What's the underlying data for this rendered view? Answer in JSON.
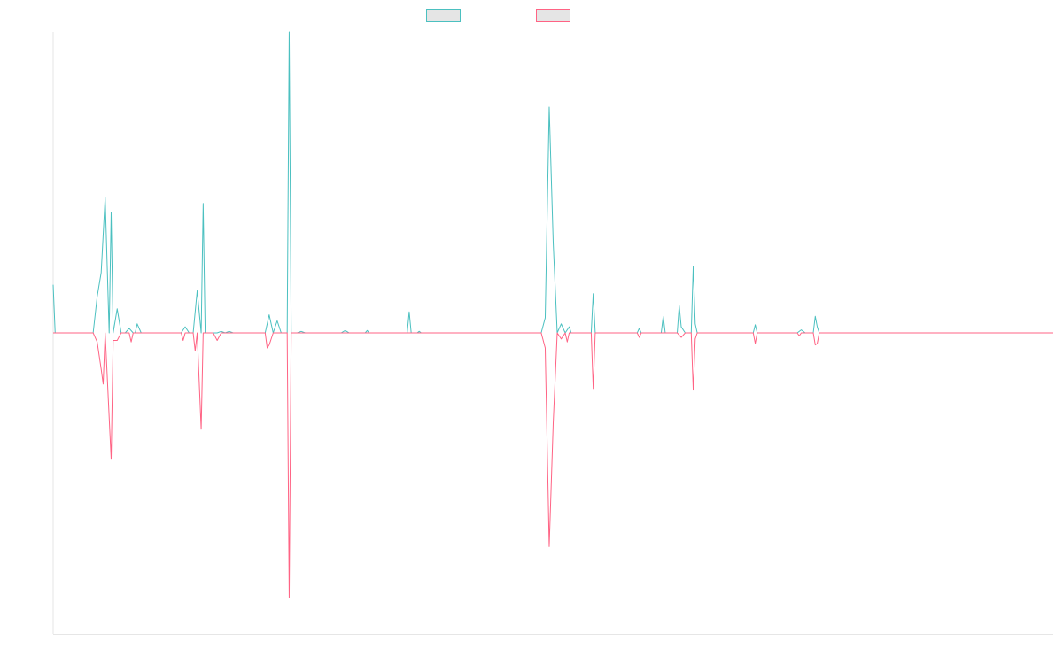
{
  "chart_data": {
    "type": "line",
    "title": "",
    "xlabel": "",
    "ylabel": "",
    "grid": false,
    "legend_position": "top-center",
    "x_range": [
      0,
      250
    ],
    "ylim": [
      -100,
      100
    ],
    "series": [
      {
        "color": "#4bc0c0",
        "fill": "#e5e5e5",
        "points": [
          [
            0,
            16
          ],
          [
            0.5,
            0
          ],
          [
            10,
            0
          ],
          [
            11,
            12
          ],
          [
            12,
            20
          ],
          [
            13,
            45
          ],
          [
            14,
            0
          ],
          [
            14.5,
            40
          ],
          [
            15,
            0
          ],
          [
            16,
            8
          ],
          [
            17,
            0
          ],
          [
            18,
            0
          ],
          [
            19,
            1.5
          ],
          [
            20,
            0
          ],
          [
            20.5,
            0
          ],
          [
            21,
            3
          ],
          [
            22,
            0
          ],
          [
            32,
            0
          ],
          [
            33,
            2
          ],
          [
            34,
            0
          ],
          [
            35,
            0
          ],
          [
            36,
            14
          ],
          [
            37,
            0
          ],
          [
            37.5,
            43
          ],
          [
            38,
            0
          ],
          [
            41,
            0
          ],
          [
            42,
            0.5
          ],
          [
            43,
            0
          ],
          [
            44,
            0.5
          ],
          [
            45,
            0
          ],
          [
            53,
            0
          ],
          [
            54,
            6
          ],
          [
            55,
            0
          ],
          [
            56,
            4
          ],
          [
            57,
            0
          ],
          [
            58.5,
            0
          ],
          [
            59,
            100
          ],
          [
            59.5,
            0
          ],
          [
            61,
            0
          ],
          [
            62,
            0.5
          ],
          [
            63,
            0
          ],
          [
            72,
            0
          ],
          [
            73,
            0.8
          ],
          [
            74,
            0
          ],
          [
            78,
            0
          ],
          [
            78.5,
            0.8
          ],
          [
            79,
            0
          ],
          [
            88.5,
            0
          ],
          [
            89,
            7
          ],
          [
            89.5,
            0
          ],
          [
            91,
            0
          ],
          [
            91.5,
            0.5
          ],
          [
            92,
            0
          ],
          [
            122,
            0
          ],
          [
            123,
            5
          ],
          [
            124,
            75
          ],
          [
            125,
            30
          ],
          [
            126,
            0
          ],
          [
            127,
            3
          ],
          [
            128,
            0
          ],
          [
            129,
            2
          ],
          [
            129.5,
            0
          ],
          [
            134.5,
            0
          ],
          [
            135,
            13
          ],
          [
            135.5,
            0
          ],
          [
            146,
            0
          ],
          [
            146.5,
            1.5
          ],
          [
            147,
            0
          ],
          [
            152,
            0
          ],
          [
            152.5,
            5.5
          ],
          [
            153,
            0
          ],
          [
            156,
            0
          ],
          [
            156.5,
            9
          ],
          [
            157,
            2
          ],
          [
            158,
            0
          ],
          [
            159.5,
            0
          ],
          [
            160,
            22
          ],
          [
            160.5,
            3
          ],
          [
            161,
            0
          ],
          [
            175,
            0
          ],
          [
            175.5,
            2.7
          ],
          [
            176,
            0
          ],
          [
            186,
            0
          ],
          [
            187,
            1
          ],
          [
            188,
            0
          ],
          [
            190,
            0
          ],
          [
            190.5,
            5.5
          ],
          [
            191,
            2
          ],
          [
            191.5,
            0
          ],
          [
            250,
            0
          ]
        ]
      },
      {
        "color": "#ff6384",
        "fill": "#e5e5e5",
        "points": [
          [
            0,
            0
          ],
          [
            10,
            0
          ],
          [
            11,
            -3
          ],
          [
            12,
            -12
          ],
          [
            12.5,
            -17
          ],
          [
            13,
            0
          ],
          [
            14.5,
            -42
          ],
          [
            15,
            -2.5
          ],
          [
            16,
            -2.5
          ],
          [
            17,
            0
          ],
          [
            19,
            0
          ],
          [
            19.5,
            -3
          ],
          [
            20,
            0
          ],
          [
            32,
            0
          ],
          [
            32.5,
            -2.5
          ],
          [
            33,
            0
          ],
          [
            35,
            0
          ],
          [
            35.5,
            -6
          ],
          [
            36,
            0
          ],
          [
            37,
            -32
          ],
          [
            37.5,
            0
          ],
          [
            40,
            0
          ],
          [
            41,
            -2.5
          ],
          [
            42,
            0
          ],
          [
            53,
            0
          ],
          [
            53.5,
            -5
          ],
          [
            54,
            -4
          ],
          [
            55,
            0
          ],
          [
            58.5,
            0
          ],
          [
            59,
            -88
          ],
          [
            59.5,
            0
          ],
          [
            122,
            0
          ],
          [
            123,
            -5
          ],
          [
            124,
            -71
          ],
          [
            125,
            -30
          ],
          [
            126,
            0
          ],
          [
            127,
            -2
          ],
          [
            128,
            0
          ],
          [
            128.5,
            -3
          ],
          [
            129,
            0
          ],
          [
            134.5,
            0
          ],
          [
            135,
            -18.5
          ],
          [
            135.5,
            0
          ],
          [
            146,
            0
          ],
          [
            146.5,
            -1.5
          ],
          [
            147,
            0
          ],
          [
            156,
            0
          ],
          [
            157,
            -1.5
          ],
          [
            158,
            0
          ],
          [
            159.5,
            0
          ],
          [
            160,
            -19
          ],
          [
            160.5,
            -2
          ],
          [
            161,
            0
          ],
          [
            175,
            0
          ],
          [
            175.5,
            -3.5
          ],
          [
            176,
            0
          ],
          [
            186,
            0
          ],
          [
            186.5,
            -1
          ],
          [
            187,
            0
          ],
          [
            190,
            0
          ],
          [
            190.5,
            -4
          ],
          [
            191,
            -3.5
          ],
          [
            191.5,
            0
          ],
          [
            250,
            0
          ]
        ]
      }
    ]
  }
}
